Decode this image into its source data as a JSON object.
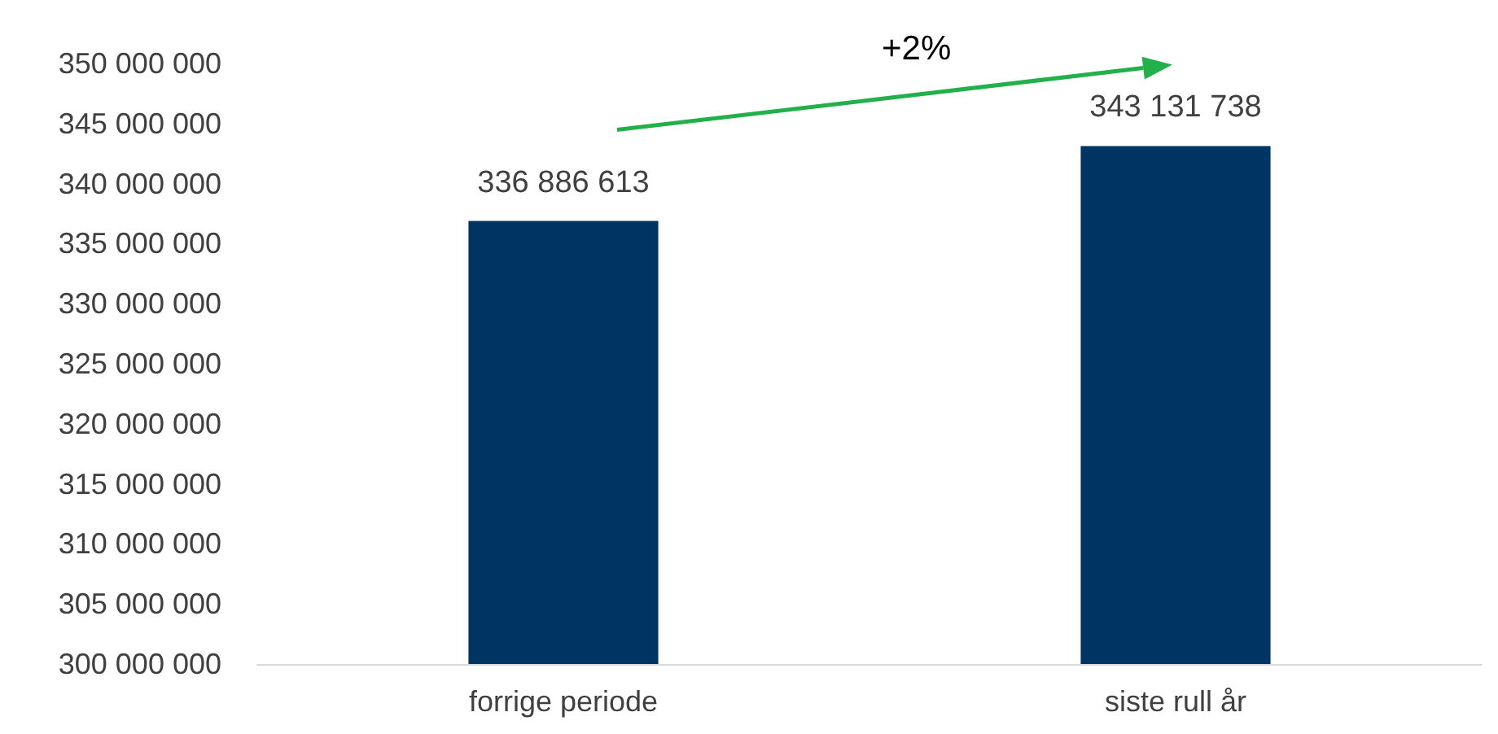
{
  "chart_data": {
    "type": "bar",
    "categories": [
      "forrige periode",
      "siste rull år"
    ],
    "values": [
      336886613,
      343131738
    ],
    "color": "#003462",
    "ylim": [
      300000000,
      350000000
    ],
    "yticks": [
      300000000,
      305000000,
      310000000,
      315000000,
      320000000,
      325000000,
      330000000,
      335000000,
      340000000,
      345000000,
      350000000
    ],
    "grid": false,
    "data_labels": true,
    "annotations": [
      "+2%"
    ]
  }
}
